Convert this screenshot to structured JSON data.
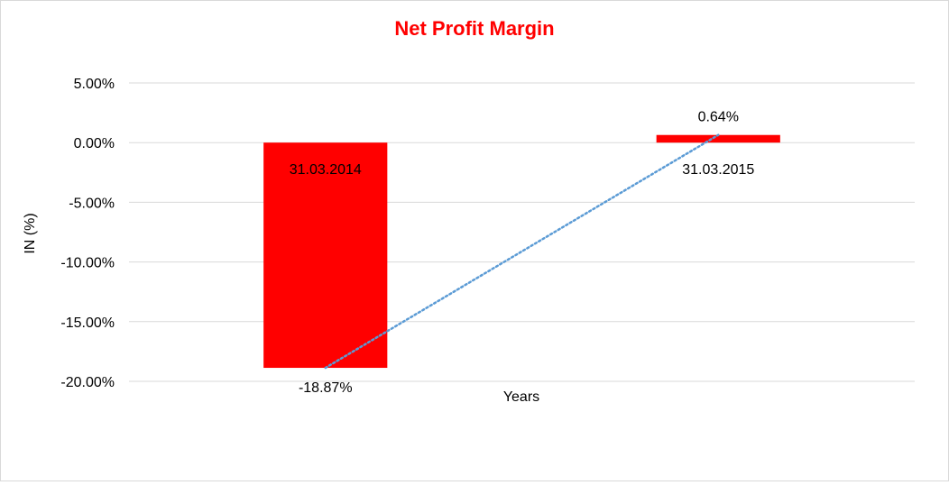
{
  "chart_data": {
    "type": "bar",
    "title": "Net Profit Margin",
    "xlabel": "Years",
    "ylabel": "IN (%)",
    "categories": [
      "31.03.2014",
      "31.03.2015"
    ],
    "values": [
      -18.87,
      0.64
    ],
    "value_labels": [
      "-18.87%",
      "0.64%"
    ],
    "ylim": [
      -20,
      5
    ],
    "yticks": [
      5,
      0,
      -5,
      -10,
      -15,
      -20
    ],
    "ytick_labels": [
      "5.00%",
      "0.00%",
      "-5.00%",
      "-10.00%",
      "-15.00%",
      "-20.00%"
    ],
    "grid": true,
    "trendline": "linear",
    "colors": {
      "bar": "#ff0000",
      "title": "#ff0000",
      "trendline": "#5b9bd5",
      "grid": "#d9d9d9"
    }
  }
}
